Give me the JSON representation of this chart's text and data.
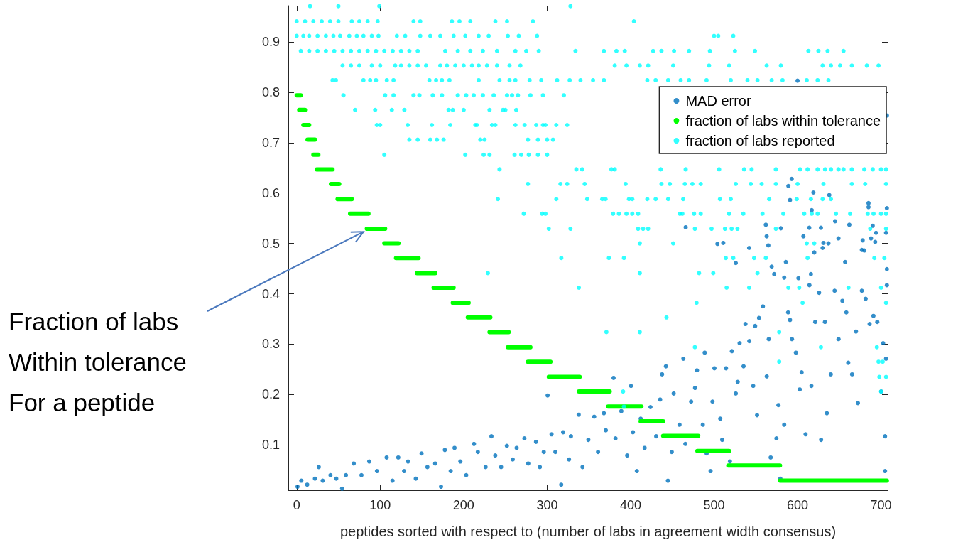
{
  "chart_data": {
    "type": "scatter",
    "xlabel": "peptides sorted with respect to (number of labs in agreement width consensus)",
    "xlim": [
      -10,
      708
    ],
    "xticks": [
      0,
      100,
      200,
      300,
      400,
      500,
      600,
      700
    ],
    "ylim": [
      0.01,
      0.972
    ],
    "yticks": [
      0.1,
      0.2,
      0.3,
      0.4,
      0.5,
      0.6,
      0.7,
      0.8,
      0.9
    ],
    "grid": false,
    "legend": "top right",
    "marker": "circle",
    "annotations": [
      {
        "text": "Fraction of labs\nWithin tolerance\nFor a peptide",
        "x": 80,
        "y": 0.523
      }
    ],
    "series": [
      {
        "name": "MAD error",
        "color": "#0072bd",
        "x": [
          1.0,
          5.6,
          12.6,
          21.9,
          26.5,
          31.2,
          40.5,
          47.4,
          54.4,
          59.0,
          68.3,
          77.6,
          86.9,
          96.2,
          107.8,
          114.8,
          121.7,
          128.7,
          133.4,
          142.7,
          149.6,
          156.6,
          165.9,
          172.9,
          177.5,
          184.5,
          189.1,
          196.1,
          203.1,
          212.4,
          217.0,
          226.3,
          233.3,
          237.9,
          244.9,
          251.8,
          258.8,
          263.5,
          272.8,
          277.4,
          286.7,
          291.3,
          296.0,
          300.6,
          305.3,
          309.9,
          316.9,
          319.2,
          326.2,
          328.5,
          337.8,
          342.4,
          349.4,
          356.4,
          361.0,
          368.0,
          370.3,
          379.6,
          381.9,
          388.9,
          395.9,
          400.5,
          402.8,
          407.5,
          412.1,
          416.8,
          423.8,
          430.7,
          435.4,
          437.7,
          442.3,
          444.7,
          449.3,
          451.6,
          458.6,
          463.2,
          465.6,
          472.5,
          477.2,
          479.5,
          486.5,
          488.8,
          491.1,
          495.8,
          498.1,
          500.4,
          507.4,
          509.7,
          514.3,
          519.0,
          521.3,
          526.0,
          528.3,
          530.6,
          535.3,
          537.6,
          542.2,
          546.9,
          549.2,
          551.5,
          553.8,
          558.5,
          563.1,
          565.5,
          567.8,
          574.7,
          577.1,
          579.4,
          584.0,
          588.7,
          591.0,
          593.3,
          598.0,
          602.6,
          604.9,
          609.6,
          614.2,
          616.6,
          621.2,
          625.8,
          628.2,
          632.8,
          635.1,
          639.8,
          644.4,
          649.1,
          653.7,
          658.4,
          660.7,
          665.3,
          670.0,
          672.3,
          677.0,
          681.6,
          686.3,
          690.9,
          695.5,
          700.2,
          702.5,
          704.8,
          706.0,
          707.0,
          704.8,
          600,
          707,
          593,
          589,
          591,
          619,
          638,
          617,
          685,
          685,
          707,
          645,
          562,
          662,
          466,
          580,
          614,
          628,
          690,
          694,
          706,
          563,
          607,
          649,
          678,
          688,
          693,
          504,
          511,
          565,
          631,
          637,
          630,
          542,
          620,
          677,
          680,
          526,
          586,
          569,
          657,
          707,
          572,
          584,
          601,
          616
        ],
        "values": [
          0.017,
          0.029,
          0.021,
          0.033,
          0.056,
          0.029,
          0.04,
          0.033,
          0.013,
          0.04,
          0.063,
          0.04,
          0.067,
          0.048,
          0.075,
          0.029,
          0.075,
          0.048,
          0.067,
          0.033,
          0.083,
          0.056,
          0.063,
          0.017,
          0.09,
          0.048,
          0.094,
          0.067,
          0.04,
          0.102,
          0.086,
          0.056,
          0.117,
          0.079,
          0.056,
          0.098,
          0.071,
          0.094,
          0.113,
          0.063,
          0.106,
          0.056,
          0.086,
          0.198,
          0.121,
          0.086,
          0.021,
          0.125,
          0.071,
          0.117,
          0.16,
          0.056,
          0.11,
          0.156,
          0.086,
          0.163,
          0.129,
          0.233,
          0.113,
          0.167,
          0.079,
          0.217,
          0.125,
          0.048,
          0.152,
          0.094,
          0.175,
          0.117,
          0.19,
          0.24,
          0.256,
          0.029,
          0.086,
          0.202,
          0.14,
          0.271,
          0.102,
          0.186,
          0.213,
          0.248,
          0.14,
          0.283,
          0.083,
          0.048,
          0.186,
          0.252,
          0.152,
          0.11,
          0.252,
          0.067,
          0.286,
          0.202,
          0.225,
          0.302,
          0.256,
          0.34,
          0.306,
          0.217,
          0.336,
          0.159,
          0.352,
          0.375,
          0.236,
          0.31,
          0.075,
          0.113,
          0.179,
          0.033,
          0.14,
          0.363,
          0.348,
          0.31,
          0.283,
          0.21,
          0.244,
          0.121,
          0.417,
          0.217,
          0.344,
          0.402,
          0.11,
          0.344,
          0.163,
          0.24,
          0.406,
          0.31,
          0.386,
          0.363,
          0.263,
          0.24,
          0.325,
          0.183,
          0.406,
          0.39,
          0.34,
          0.356,
          0.344,
          0.206,
          0.302,
          0.117,
          0.271,
          0.417,
          0.048,
          0.823,
          0.754,
          0.628,
          0.614,
          0.586,
          0.601,
          0.596,
          0.566,
          0.58,
          0.572,
          0.57,
          0.544,
          0.537,
          0.537,
          0.532,
          0.53,
          0.531,
          0.531,
          0.535,
          0.521,
          0.521,
          0.514,
          0.514,
          0.51,
          0.506,
          0.51,
          0.503,
          0.499,
          0.501,
          0.496,
          0.501,
          0.5,
          0.491,
          0.491,
          0.482,
          0.487,
          0.486,
          0.461,
          0.463,
          0.454,
          0.463,
          0.449,
          0.439,
          0.432,
          0.431,
          0.439
        ]
      },
      {
        "name": "fraction of labs within tolerance",
        "type": "line",
        "marker": "none",
        "color": "#00ff00",
        "x": [
          0,
          5,
          null,
          3,
          10,
          null,
          8,
          15,
          null,
          13,
          22,
          null,
          20,
          26,
          null,
          24,
          43,
          null,
          41,
          51,
          null,
          49,
          66,
          null,
          64,
          86,
          null,
          84,
          106,
          null,
          105,
          122,
          null,
          119,
          146,
          null,
          144,
          166,
          null,
          164,
          188,
          null,
          187,
          206,
          null,
          205,
          232,
          null,
          231,
          254,
          null,
          253,
          280,
          null,
          277,
          304,
          null,
          302,
          339,
          null,
          338,
          375,
          null,
          373,
          413,
          null,
          412,
          439,
          null,
          439,
          481,
          null,
          480,
          518,
          null,
          517,
          579,
          null,
          579,
          707
        ],
        "values": [
          0.794,
          0.794,
          null,
          0.765,
          0.765,
          null,
          0.735,
          0.735,
          null,
          0.706,
          0.706,
          null,
          0.676,
          0.676,
          null,
          0.647,
          0.647,
          null,
          0.618,
          0.618,
          null,
          0.588,
          0.588,
          null,
          0.559,
          0.559,
          null,
          0.529,
          0.529,
          null,
          0.5,
          0.5,
          null,
          0.471,
          0.471,
          null,
          0.441,
          0.441,
          null,
          0.412,
          0.412,
          null,
          0.382,
          0.382,
          null,
          0.353,
          0.353,
          null,
          0.324,
          0.324,
          null,
          0.294,
          0.294,
          null,
          0.265,
          0.265,
          null,
          0.235,
          0.235,
          null,
          0.206,
          0.206,
          null,
          0.176,
          0.176,
          null,
          0.147,
          0.147,
          null,
          0.118,
          0.118,
          null,
          0.088,
          0.088,
          null,
          0.059,
          0.059,
          null,
          0.029,
          0.029
        ]
      },
      {
        "name": "fraction of labs reported",
        "color": "#00ffff",
        "x": [
          16,
          50,
          99,
          328,
          0,
          10,
          20,
          30,
          40,
          50,
          66,
          75,
          85,
          97,
          140,
          148,
          186,
          195,
          208,
          238,
          252,
          283,
          404,
          0,
          8,
          15,
          25,
          35,
          44,
          52,
          63,
          72,
          80,
          90,
          98,
          120,
          130,
          148,
          160,
          172,
          188,
          202,
          218,
          230,
          253,
          266,
          288,
          500,
          505,
          523,
          5,
          15,
          25,
          35,
          45,
          55,
          65,
          75,
          85,
          95,
          105,
          115,
          125,
          135,
          145,
          178,
          193,
          208,
          223,
          240,
          262,
          275,
          290,
          334,
          368,
          383,
          393,
          427,
          437,
          452,
          470,
          495,
          525,
          549,
          613,
          625,
          636,
          655,
          55,
          65,
          75,
          90,
          100,
          118,
          125,
          135,
          145,
          155,
          172,
          180,
          190,
          200,
          210,
          218,
          228,
          240,
          255,
          268,
          381,
          395,
          411,
          421,
          451,
          494,
          518,
          563,
          580,
          630,
          640,
          651,
          665,
          683,
          697,
          43,
          47,
          80,
          88,
          95,
          108,
          116,
          159,
          167,
          174,
          183,
          218,
          243,
          255,
          262,
          279,
          293,
          312,
          327,
          340,
          355,
          368,
          420,
          430,
          445,
          460,
          470,
          491,
          520,
          540,
          552,
          569,
          582,
          611,
          624,
          637,
          56,
          106,
          116,
          140,
          147,
          163,
          174,
          193,
          203,
          212,
          223,
          236,
          252,
          258,
          265,
          280,
          295,
          320,
          70,
          94,
          114,
          129,
          182,
          187,
          200,
          231,
          247,
          250,
          263,
          96,
          100,
          133,
          162,
          184,
          214,
          216,
          234,
          238,
          262,
          273,
          287,
          295,
          298,
          311,
          324,
          135,
          145,
          160,
          168,
          176,
          220,
          225,
          277,
          289,
          300,
          307,
          105,
          202,
          224,
          231,
          261,
          269,
          278,
          289,
          300,
          243,
          335,
          342,
          377,
          381,
          436,
          466,
          506,
          536,
          545,
          574,
          603,
          612,
          624,
          633,
          640,
          649,
          655,
          665,
          680,
          690,
          700,
          706,
          277,
          316,
          324,
          345,
          394,
          437,
          447,
          465,
          474,
          484,
          526,
          544,
          557,
          574,
          600,
          631,
          665,
          681,
          706,
          241,
          311,
          348,
          366,
          370,
          398,
          402,
          420,
          430,
          445,
          463,
          507,
          520,
          566,
          599,
          616,
          630,
          640,
          272,
          294,
          298,
          379,
          386,
          395,
          402,
          409,
          459,
          462,
          476,
          484,
          518,
          535,
          558,
          583,
          608,
          617,
          624,
          646,
          663,
          684,
          691,
          700,
          706,
          302,
          328,
          409,
          415,
          421,
          477,
          497,
          513,
          521,
          528,
          574,
          687,
          706,
          411,
          451,
          611,
          620,
          317,
          374,
          392,
          514,
          523,
          548,
          562,
          612,
          692,
          704,
          229,
          411,
          482,
          499,
          552,
          338,
          515,
          542,
          589,
          602,
          661,
          700,
          479,
          606,
          706,
          443,
          371,
          411,
          578,
          477,
          628,
          695,
          578,
          697,
          702,
          698,
          706,
          391,
          700,
          392
        ],
        "values": [
          0.971,
          0.971,
          0.971,
          0.971,
          0.941,
          0.941,
          0.941,
          0.941,
          0.941,
          0.941,
          0.941,
          0.941,
          0.941,
          0.941,
          0.941,
          0.941,
          0.941,
          0.941,
          0.941,
          0.941,
          0.941,
          0.941,
          0.941,
          0.912,
          0.912,
          0.912,
          0.912,
          0.912,
          0.912,
          0.912,
          0.912,
          0.912,
          0.912,
          0.912,
          0.912,
          0.912,
          0.912,
          0.912,
          0.912,
          0.912,
          0.912,
          0.912,
          0.912,
          0.912,
          0.912,
          0.912,
          0.912,
          0.912,
          0.912,
          0.912,
          0.882,
          0.882,
          0.882,
          0.882,
          0.882,
          0.882,
          0.882,
          0.882,
          0.882,
          0.882,
          0.882,
          0.882,
          0.882,
          0.882,
          0.882,
          0.882,
          0.882,
          0.882,
          0.882,
          0.882,
          0.882,
          0.882,
          0.882,
          0.882,
          0.882,
          0.882,
          0.882,
          0.882,
          0.882,
          0.882,
          0.882,
          0.882,
          0.882,
          0.882,
          0.882,
          0.882,
          0.882,
          0.882,
          0.853,
          0.853,
          0.853,
          0.853,
          0.853,
          0.853,
          0.853,
          0.853,
          0.853,
          0.853,
          0.853,
          0.853,
          0.853,
          0.853,
          0.853,
          0.853,
          0.853,
          0.853,
          0.853,
          0.853,
          0.853,
          0.853,
          0.853,
          0.853,
          0.853,
          0.853,
          0.853,
          0.853,
          0.853,
          0.853,
          0.853,
          0.853,
          0.853,
          0.853,
          0.853,
          0.824,
          0.824,
          0.824,
          0.824,
          0.824,
          0.824,
          0.824,
          0.824,
          0.824,
          0.824,
          0.824,
          0.824,
          0.824,
          0.824,
          0.824,
          0.824,
          0.824,
          0.824,
          0.824,
          0.824,
          0.824,
          0.824,
          0.824,
          0.824,
          0.824,
          0.824,
          0.824,
          0.824,
          0.824,
          0.824,
          0.824,
          0.824,
          0.824,
          0.824,
          0.824,
          0.824,
          0.794,
          0.794,
          0.794,
          0.794,
          0.794,
          0.794,
          0.794,
          0.794,
          0.794,
          0.794,
          0.794,
          0.794,
          0.794,
          0.794,
          0.794,
          0.794,
          0.794,
          0.794,
          0.765,
          0.765,
          0.765,
          0.765,
          0.765,
          0.765,
          0.765,
          0.765,
          0.765,
          0.765,
          0.765,
          0.735,
          0.735,
          0.735,
          0.735,
          0.735,
          0.735,
          0.735,
          0.735,
          0.735,
          0.735,
          0.735,
          0.735,
          0.735,
          0.735,
          0.735,
          0.735,
          0.706,
          0.706,
          0.706,
          0.706,
          0.706,
          0.706,
          0.706,
          0.706,
          0.706,
          0.706,
          0.706,
          0.676,
          0.676,
          0.676,
          0.676,
          0.676,
          0.676,
          0.676,
          0.676,
          0.676,
          0.647,
          0.647,
          0.647,
          0.647,
          0.647,
          0.647,
          0.647,
          0.647,
          0.647,
          0.647,
          0.647,
          0.647,
          0.647,
          0.647,
          0.647,
          0.647,
          0.647,
          0.647,
          0.647,
          0.647,
          0.647,
          0.647,
          0.647,
          0.618,
          0.618,
          0.618,
          0.618,
          0.618,
          0.618,
          0.618,
          0.618,
          0.618,
          0.618,
          0.618,
          0.618,
          0.618,
          0.618,
          0.618,
          0.618,
          0.618,
          0.618,
          0.618,
          0.588,
          0.588,
          0.588,
          0.588,
          0.588,
          0.588,
          0.588,
          0.588,
          0.588,
          0.588,
          0.588,
          0.588,
          0.588,
          0.588,
          0.588,
          0.588,
          0.588,
          0.588,
          0.559,
          0.559,
          0.559,
          0.559,
          0.559,
          0.559,
          0.559,
          0.559,
          0.559,
          0.559,
          0.559,
          0.559,
          0.559,
          0.559,
          0.559,
          0.559,
          0.559,
          0.559,
          0.559,
          0.559,
          0.559,
          0.559,
          0.559,
          0.559,
          0.559,
          0.529,
          0.529,
          0.529,
          0.529,
          0.529,
          0.529,
          0.529,
          0.529,
          0.529,
          0.529,
          0.529,
          0.529,
          0.529,
          0.5,
          0.5,
          0.5,
          0.5,
          0.471,
          0.471,
          0.471,
          0.471,
          0.471,
          0.471,
          0.471,
          0.471,
          0.471,
          0.471,
          0.441,
          0.441,
          0.441,
          0.441,
          0.441,
          0.412,
          0.412,
          0.412,
          0.412,
          0.412,
          0.412,
          0.412,
          0.382,
          0.382,
          0.382,
          0.353,
          0.324,
          0.324,
          0.324,
          0.294,
          0.294,
          0.294,
          0.265,
          0.265,
          0.265,
          0.235,
          0.235,
          0.206,
          0.206,
          0.176
        ]
      }
    ]
  }
}
